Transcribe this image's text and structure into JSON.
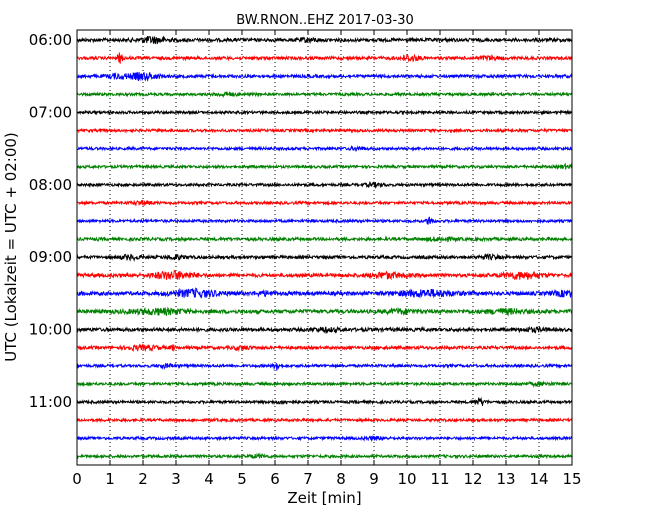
{
  "chart_data": {
    "type": "line",
    "title": "BW.RNON..EHZ 2017-03-30",
    "xlabel": "Zeit  [min]",
    "ylabel": "UTC (Lokalzeit = UTC + 02:00)",
    "xlim": [
      0,
      15
    ],
    "x_ticks": [
      "0",
      "1",
      "2",
      "3",
      "4",
      "5",
      "6",
      "7",
      "8",
      "9",
      "10",
      "11",
      "12",
      "13",
      "14",
      "15"
    ],
    "y_ticks": [
      "06:00",
      "07:00",
      "08:00",
      "09:00",
      "10:00",
      "11:00"
    ],
    "vertical_grid": "dotted",
    "colors": {
      "black": "#000000",
      "red": "#ff0000",
      "blue": "#0000ff",
      "green": "#008000"
    },
    "series": [
      {
        "start": "06:00",
        "color": "black",
        "noise": 0.9,
        "events": [
          [
            2.3,
            1.4,
            0.3
          ],
          [
            7.0,
            0.8,
            0.2
          ]
        ]
      },
      {
        "start": "06:15",
        "color": "red",
        "noise": 0.8,
        "events": [
          [
            1.3,
            2.4,
            0.06
          ],
          [
            10.1,
            1.3,
            0.2
          ],
          [
            12.5,
            0.8,
            0.2
          ]
        ]
      },
      {
        "start": "06:30",
        "color": "blue",
        "noise": 0.8,
        "events": [
          [
            2.0,
            1.6,
            0.35
          ],
          [
            1.2,
            1.0,
            0.2
          ]
        ]
      },
      {
        "start": "06:45",
        "color": "green",
        "noise": 0.7,
        "events": [
          [
            4.5,
            0.8,
            0.2
          ]
        ]
      },
      {
        "start": "07:00",
        "color": "black",
        "noise": 0.7,
        "events": []
      },
      {
        "start": "07:15",
        "color": "red",
        "noise": 0.7,
        "events": []
      },
      {
        "start": "07:30",
        "color": "blue",
        "noise": 0.7,
        "events": [
          [
            8.5,
            0.8,
            0.15
          ]
        ]
      },
      {
        "start": "07:45",
        "color": "green",
        "noise": 0.7,
        "events": [
          [
            14.8,
            0.8,
            0.15
          ]
        ]
      },
      {
        "start": "08:00",
        "color": "black",
        "noise": 0.7,
        "events": [
          [
            9.0,
            0.8,
            0.2
          ]
        ]
      },
      {
        "start": "08:15",
        "color": "red",
        "noise": 0.7,
        "events": [
          [
            2.0,
            0.9,
            0.2
          ]
        ]
      },
      {
        "start": "08:30",
        "color": "blue",
        "noise": 0.7,
        "events": [
          [
            10.7,
            2.6,
            0.06
          ]
        ]
      },
      {
        "start": "08:45",
        "color": "green",
        "noise": 0.8,
        "events": [
          [
            11.0,
            0.7,
            0.3
          ]
        ]
      },
      {
        "start": "09:00",
        "color": "black",
        "noise": 0.8,
        "events": [
          [
            1.6,
            1.0,
            0.2
          ],
          [
            3.0,
            0.9,
            0.2
          ],
          [
            12.5,
            0.8,
            0.2
          ]
        ]
      },
      {
        "start": "09:15",
        "color": "red",
        "noise": 0.9,
        "events": [
          [
            2.9,
            1.8,
            0.45
          ],
          [
            9.4,
            1.3,
            0.35
          ],
          [
            13.5,
            1.6,
            0.4
          ]
        ]
      },
      {
        "start": "09:30",
        "color": "blue",
        "noise": 1.0,
        "events": [
          [
            3.6,
            1.7,
            0.5
          ],
          [
            5.7,
            0.8,
            0.2
          ],
          [
            10.6,
            1.5,
            0.6
          ],
          [
            14.8,
            1.2,
            0.25
          ]
        ]
      },
      {
        "start": "09:45",
        "color": "green",
        "noise": 1.0,
        "events": [
          [
            2.5,
            1.2,
            0.6
          ],
          [
            9.8,
            0.9,
            0.3
          ],
          [
            13.0,
            1.0,
            0.4
          ]
        ]
      },
      {
        "start": "10:00",
        "color": "black",
        "noise": 0.9,
        "events": [
          [
            7.5,
            0.8,
            0.3
          ],
          [
            13.8,
            0.7,
            0.3
          ]
        ]
      },
      {
        "start": "10:15",
        "color": "red",
        "noise": 0.8,
        "events": [
          [
            2.0,
            0.9,
            0.4
          ],
          [
            2.9,
            1.0,
            0.05
          ],
          [
            5.0,
            0.7,
            0.2
          ]
        ]
      },
      {
        "start": "10:30",
        "color": "blue",
        "noise": 0.7,
        "events": [
          [
            6.05,
            2.8,
            0.05
          ],
          [
            2.7,
            0.7,
            0.2
          ]
        ]
      },
      {
        "start": "10:45",
        "color": "green",
        "noise": 0.7,
        "events": [
          [
            14.0,
            0.6,
            0.3
          ]
        ]
      },
      {
        "start": "11:00",
        "color": "black",
        "noise": 0.7,
        "events": [
          [
            12.2,
            1.8,
            0.12
          ],
          [
            6.3,
            0.6,
            0.2
          ]
        ]
      },
      {
        "start": "11:15",
        "color": "red",
        "noise": 0.7,
        "events": []
      },
      {
        "start": "11:30",
        "color": "blue",
        "noise": 0.7,
        "events": [
          [
            9.0,
            0.6,
            0.2
          ]
        ]
      },
      {
        "start": "11:45",
        "color": "green",
        "noise": 0.7,
        "events": [
          [
            5.5,
            0.6,
            0.2
          ]
        ]
      }
    ]
  }
}
